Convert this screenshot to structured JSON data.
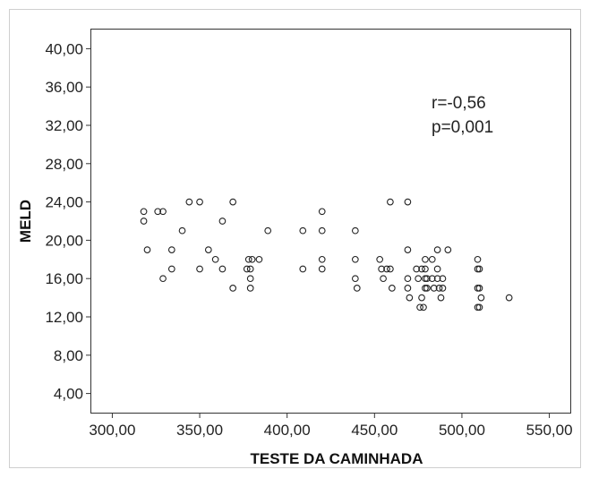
{
  "chart_data": {
    "type": "scatter",
    "title": "",
    "xlabel": "TESTE DA CAMINHADA",
    "ylabel": "MELD",
    "xlim": [
      288,
      562
    ],
    "ylim": [
      2,
      42
    ],
    "x_ticks": [
      300,
      350,
      400,
      450,
      500,
      550
    ],
    "x_tick_labels": [
      "300,00",
      "350,00",
      "400,00",
      "450,00",
      "500,00",
      "550,00"
    ],
    "y_ticks": [
      4,
      8,
      12,
      16,
      20,
      24,
      28,
      32,
      36,
      40
    ],
    "y_tick_labels": [
      "4,00",
      "8,00",
      "12,00",
      "16,00",
      "20,00",
      "24,00",
      "28,00",
      "32,00",
      "36,00",
      "40,00"
    ],
    "grid": false,
    "marker": "open-circle",
    "annotations": [
      "r=-0,56",
      "p=0,001"
    ],
    "points": [
      [
        318,
        23
      ],
      [
        318,
        22
      ],
      [
        320,
        19
      ],
      [
        326,
        23
      ],
      [
        329,
        23
      ],
      [
        329,
        16
      ],
      [
        334,
        19
      ],
      [
        334,
        17
      ],
      [
        340,
        21
      ],
      [
        344,
        24
      ],
      [
        350,
        24
      ],
      [
        350,
        17
      ],
      [
        355,
        19
      ],
      [
        359,
        18
      ],
      [
        363,
        22
      ],
      [
        363,
        17
      ],
      [
        369,
        24
      ],
      [
        369,
        15
      ],
      [
        377,
        17
      ],
      [
        378,
        18
      ],
      [
        379,
        17
      ],
      [
        379,
        16
      ],
      [
        379,
        15
      ],
      [
        380,
        18
      ],
      [
        384,
        18
      ],
      [
        389,
        21
      ],
      [
        409,
        21
      ],
      [
        409,
        17
      ],
      [
        420,
        23
      ],
      [
        420,
        21
      ],
      [
        420,
        18
      ],
      [
        420,
        17
      ],
      [
        439,
        21
      ],
      [
        439,
        18
      ],
      [
        439,
        16
      ],
      [
        440,
        15
      ],
      [
        453,
        18
      ],
      [
        454,
        17
      ],
      [
        455,
        16
      ],
      [
        457,
        17
      ],
      [
        459,
        24
      ],
      [
        459,
        17
      ],
      [
        460,
        15
      ],
      [
        469,
        24
      ],
      [
        469,
        19
      ],
      [
        469,
        16
      ],
      [
        469,
        15
      ],
      [
        470,
        14
      ],
      [
        474,
        17
      ],
      [
        475,
        16
      ],
      [
        476,
        13
      ],
      [
        477,
        17
      ],
      [
        477,
        14
      ],
      [
        478,
        13
      ],
      [
        479,
        18
      ],
      [
        479,
        17
      ],
      [
        479,
        16
      ],
      [
        479,
        15
      ],
      [
        480,
        15
      ],
      [
        480,
        16
      ],
      [
        483,
        18
      ],
      [
        483,
        16
      ],
      [
        484,
        15
      ],
      [
        486,
        19
      ],
      [
        486,
        17
      ],
      [
        486,
        16
      ],
      [
        487,
        15
      ],
      [
        488,
        14
      ],
      [
        489,
        16
      ],
      [
        489,
        15
      ],
      [
        492,
        19
      ],
      [
        509,
        18
      ],
      [
        509,
        17
      ],
      [
        509,
        15
      ],
      [
        509,
        13
      ],
      [
        510,
        17
      ],
      [
        510,
        15
      ],
      [
        510,
        13
      ],
      [
        511,
        14
      ],
      [
        527,
        14
      ]
    ]
  }
}
